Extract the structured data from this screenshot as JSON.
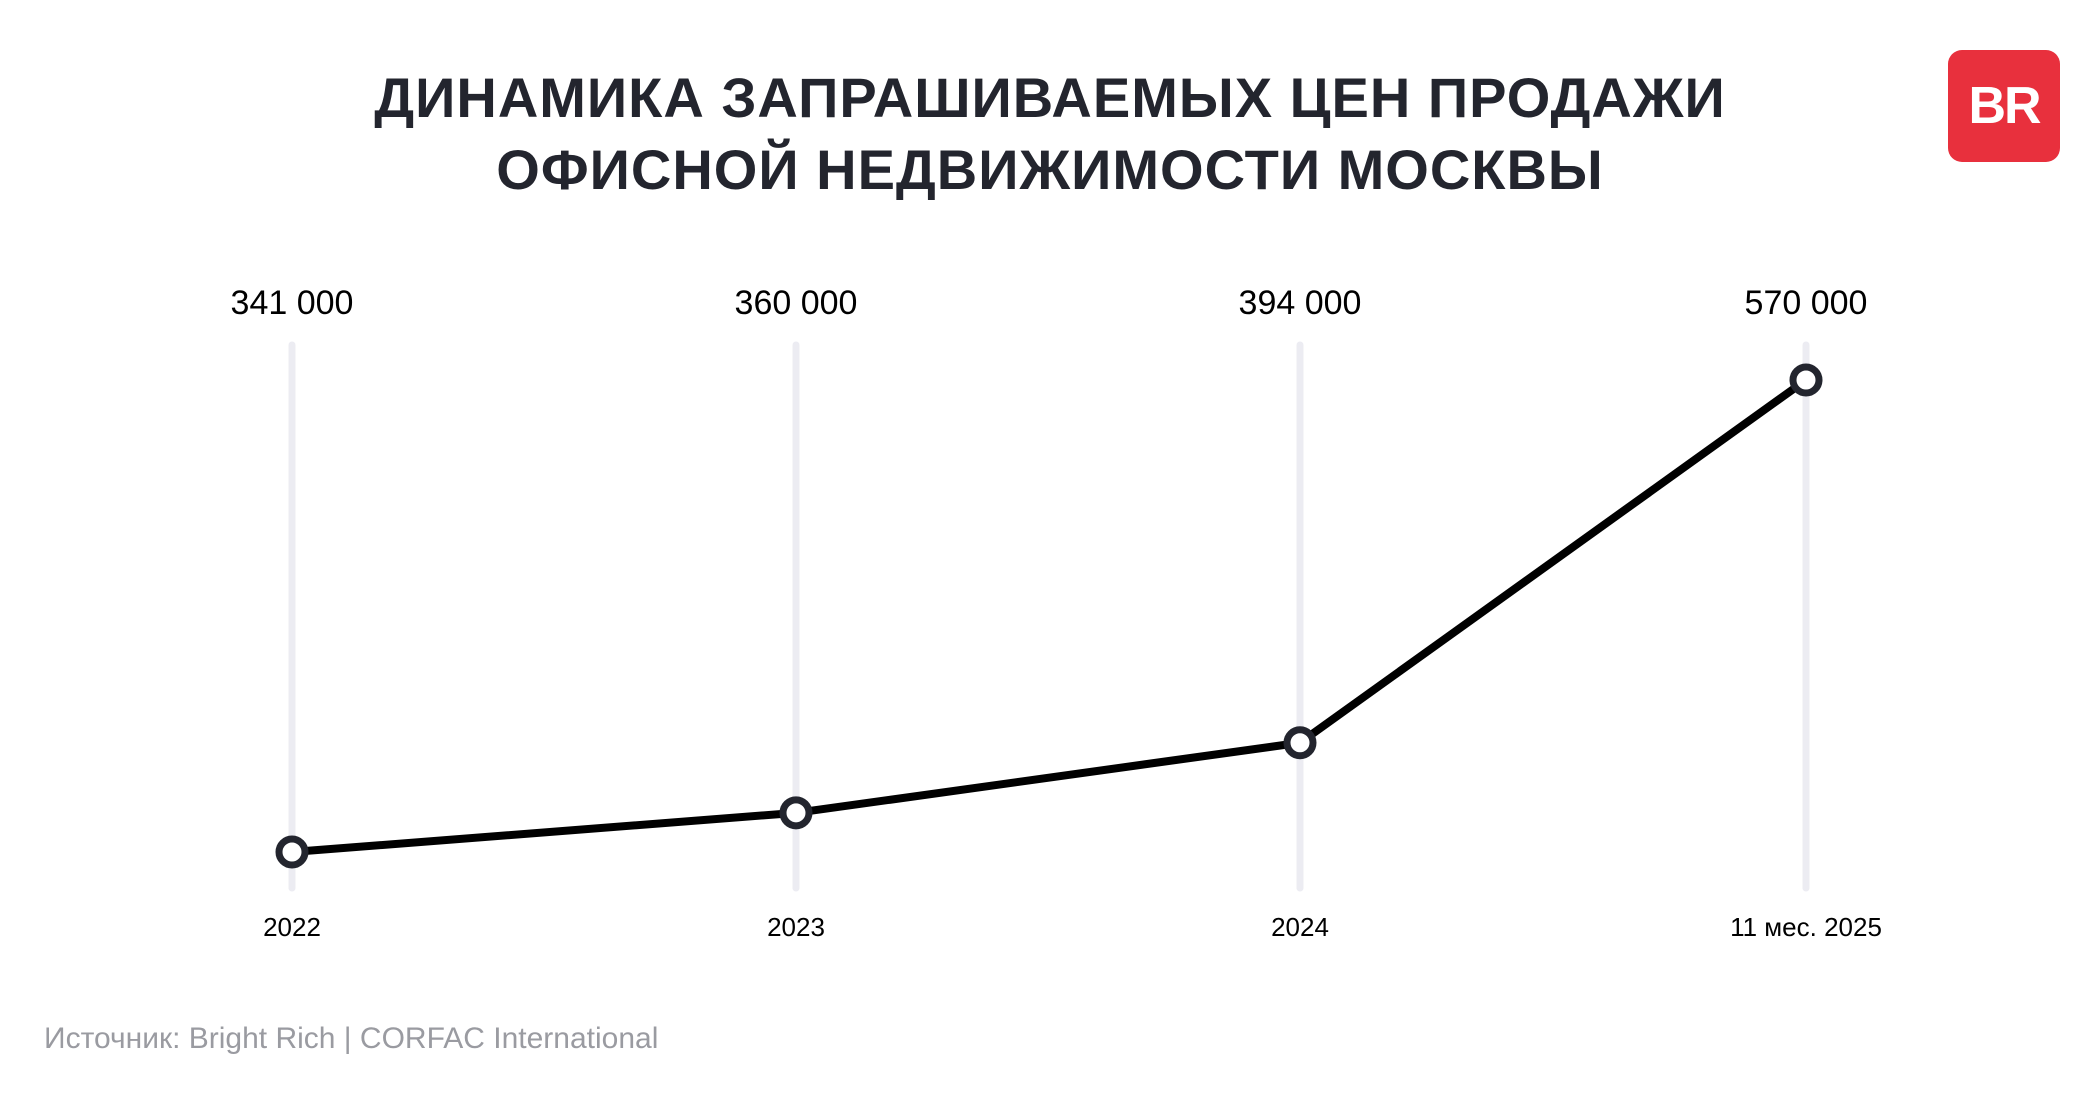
{
  "title": {
    "line1": "ДИНАМИКА ЗАПРАШИВАЕМЫХ ЦЕН ПРОДАЖИ",
    "line2": "ОФИСНОЙ НЕДВИЖИМОСТИ МОСКВЫ"
  },
  "logo": {
    "text": "BR",
    "color": "#e8303d"
  },
  "source": "Источник: Bright Rich | CORFAC International",
  "chart_data": {
    "type": "line",
    "title": "ДИНАМИКА ЗАПРАШИВАЕМЫХ ЦЕН ПРОДАЖИ ОФИСНОЙ НЕДВИЖИМОСТИ МОСКВЫ",
    "categories": [
      "2022",
      "2023",
      "2024",
      "11 мес. 2025"
    ],
    "series": [
      {
        "values": [
          341000,
          360000,
          394000,
          570000
        ]
      }
    ],
    "data_labels": [
      "341 000",
      "360 000",
      "394 000",
      "570 000"
    ],
    "xlabel": "",
    "ylabel": "",
    "grid": "vertical",
    "line_color": "#000000",
    "marker_color": "#23252e",
    "gridline_color": "#ececf2"
  }
}
